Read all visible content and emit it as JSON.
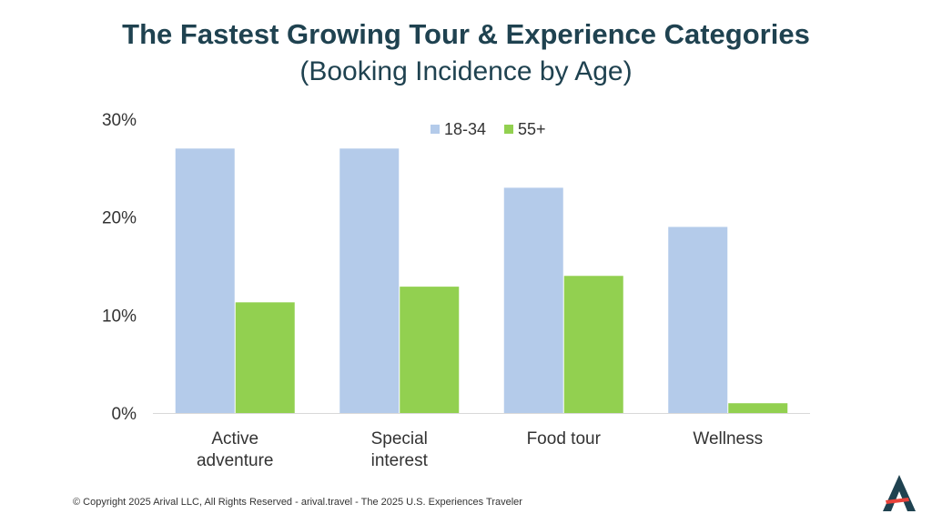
{
  "chart_data": {
    "type": "bar",
    "title": "The Fastest Growing Tour & Experience Categories",
    "subtitle": "(Booking Incidence by Age)",
    "categories": [
      [
        "Active",
        "adventure"
      ],
      [
        "Special",
        "interest"
      ],
      [
        "Food tour"
      ],
      [
        "Wellness"
      ]
    ],
    "series": [
      {
        "name": "18-34",
        "values": [
          27,
          27,
          23,
          19
        ]
      },
      {
        "name": "55+",
        "values": [
          11.3,
          12.9,
          14,
          1
        ]
      }
    ],
    "y_ticks": [
      "0%",
      "10%",
      "20%",
      "30%"
    ],
    "ylim": [
      0,
      30
    ],
    "legend_position": "top-center",
    "grid": false,
    "colors": {
      "series_1": "#b4cbea",
      "series_2": "#92d050",
      "title": "#1f4250",
      "axis": "#d9d9d9"
    }
  },
  "footer": {
    "text": "© Copyright 2025 Arival LLC, All Rights Reserved - arival.travel - The 2025 U.S. Experiences Traveler"
  },
  "logo": {
    "icon": "arival-logo-icon"
  }
}
